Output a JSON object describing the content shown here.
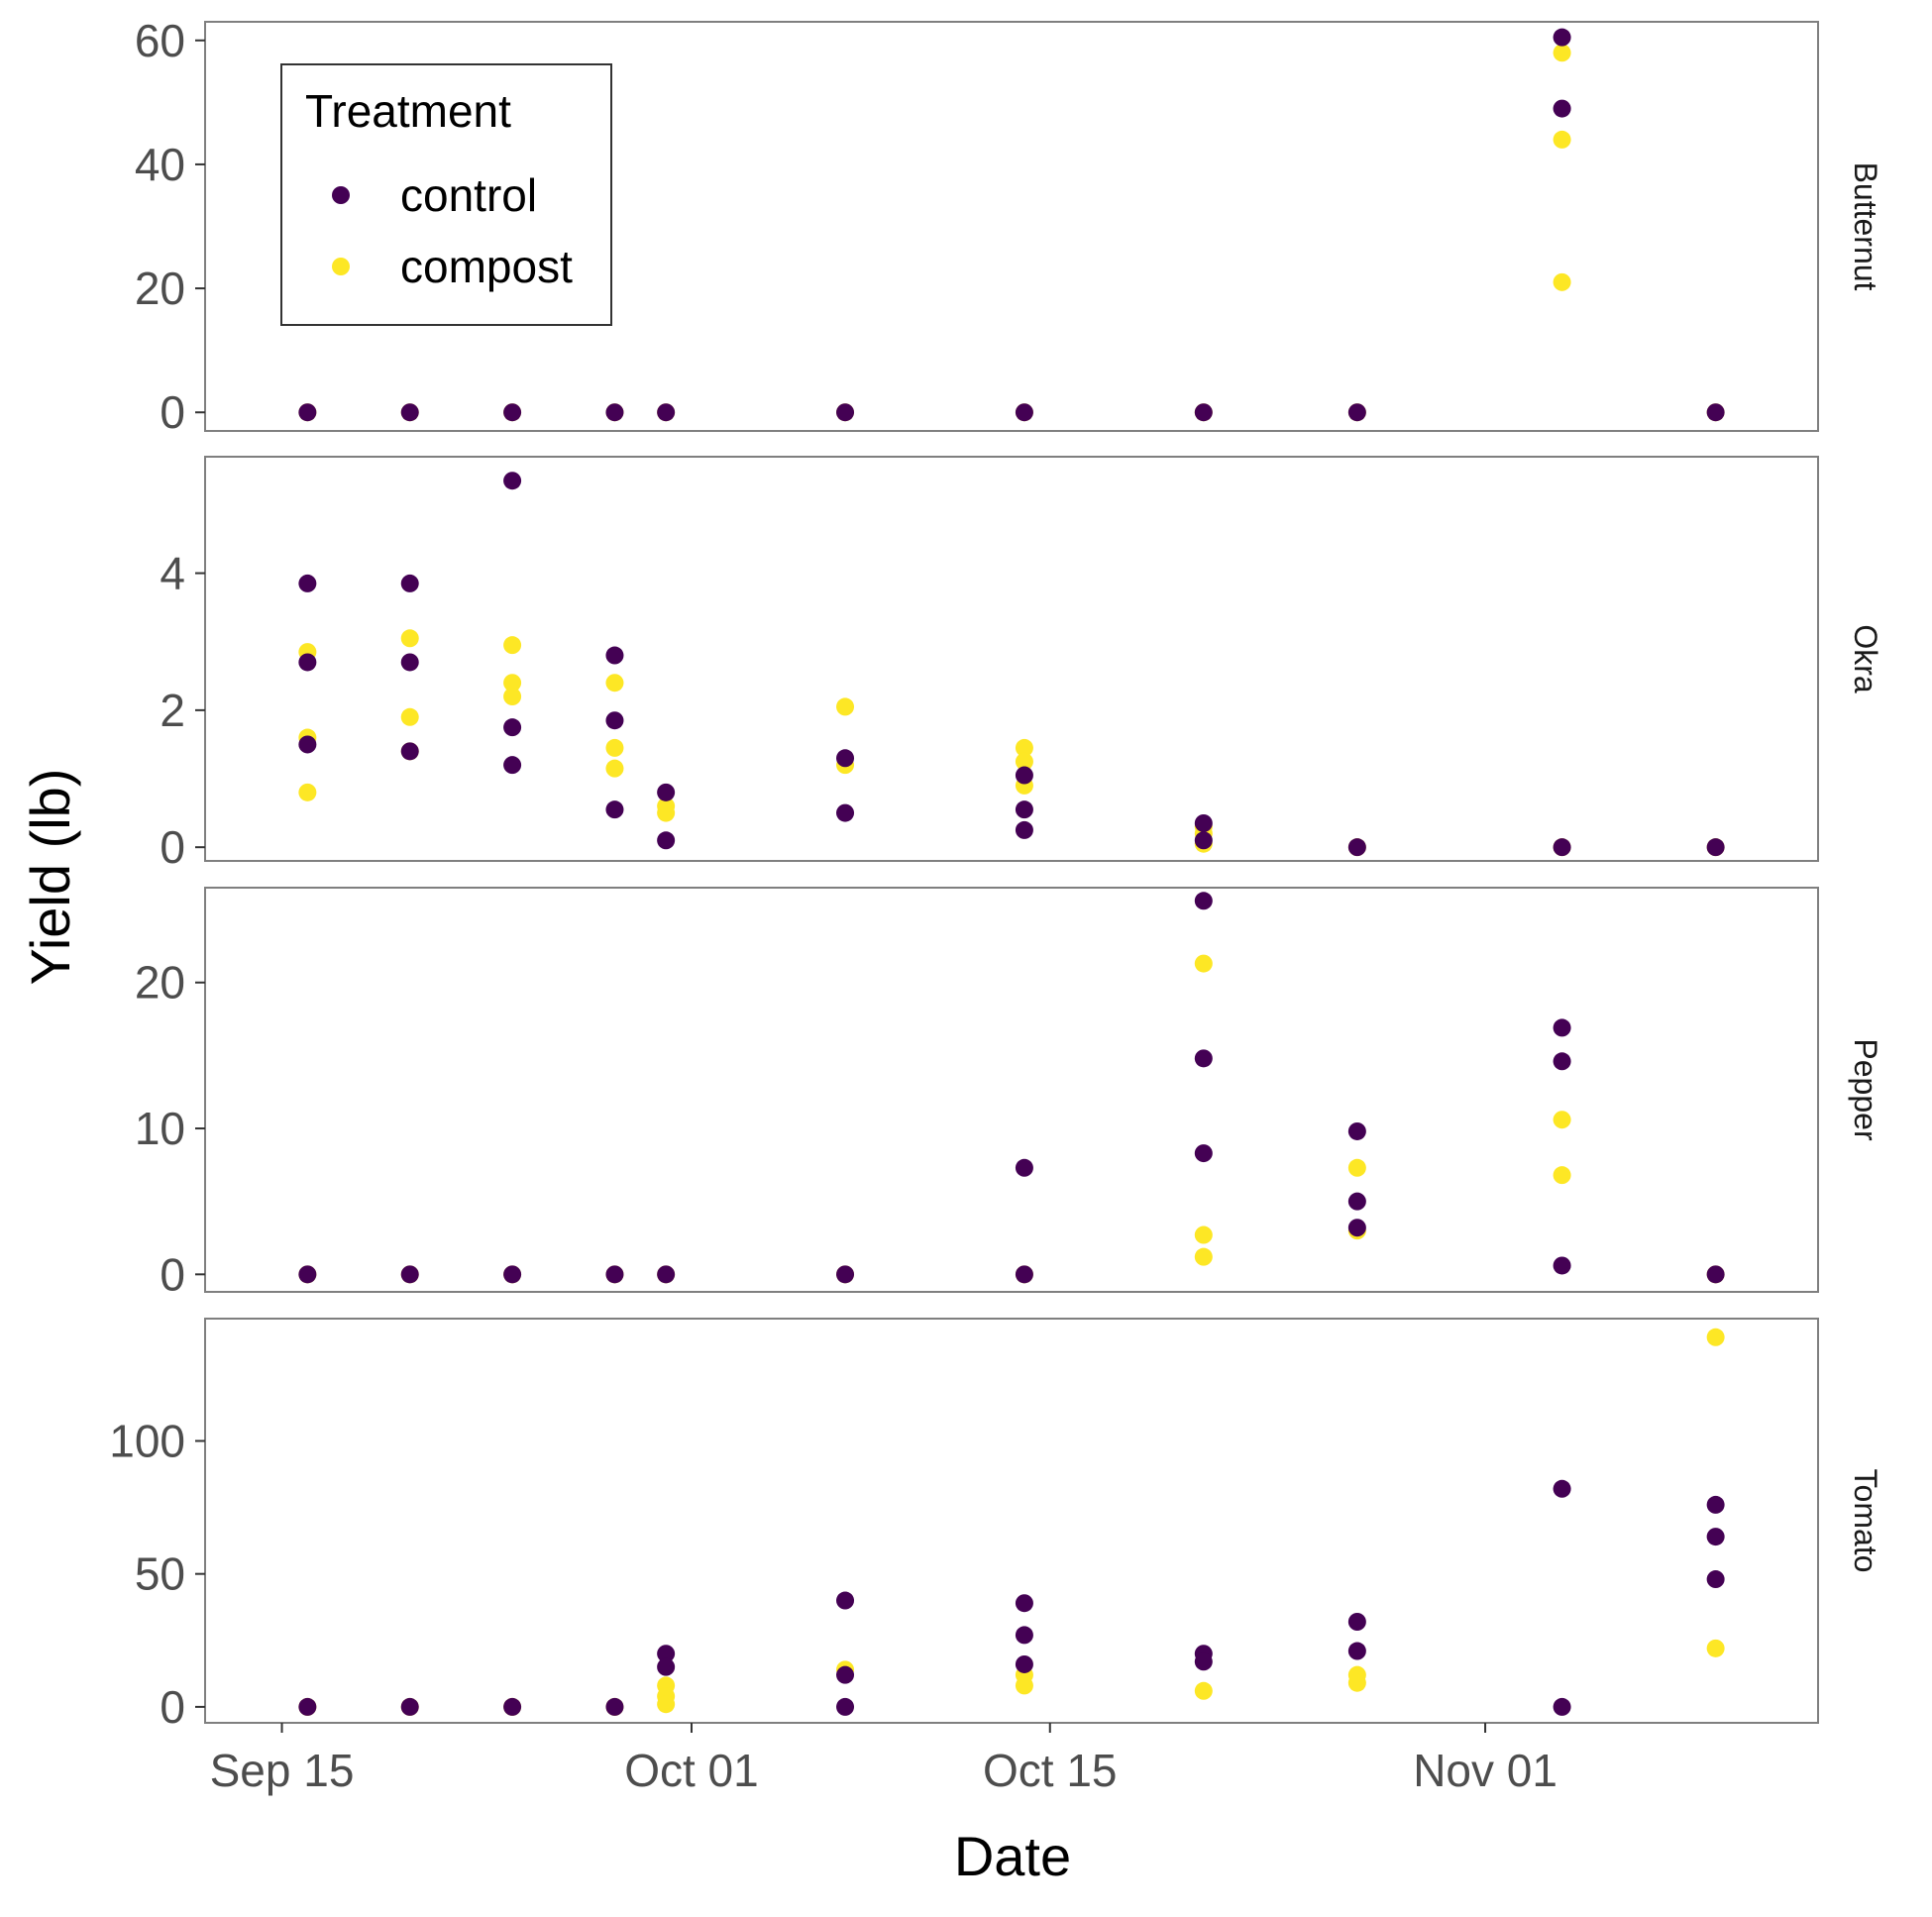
{
  "chart_data": {
    "type": "scatter",
    "facet_by": "Crop",
    "xlabel": "Date",
    "ylabel": "Yield (lb)",
    "x_ticks": [
      {
        "date": "2023-09-15",
        "label": "Sep 15"
      },
      {
        "date": "2023-10-01",
        "label": "Oct 01"
      },
      {
        "date": "2023-10-15",
        "label": "Oct 15"
      },
      {
        "date": "2023-11-01",
        "label": "Nov 01"
      }
    ],
    "xlim": [
      "2023-09-12",
      "2023-11-14"
    ],
    "legend": {
      "title": "Treatment",
      "placement": "top-left inside first panel",
      "entries": [
        {
          "name": "control",
          "color": "#440154"
        },
        {
          "name": "compost",
          "color": "#fde725"
        }
      ]
    },
    "panels": [
      {
        "name": "Butternut",
        "ylim": [
          -3,
          63
        ],
        "yticks": [
          0,
          20,
          40,
          60
        ],
        "series": [
          {
            "name": "compost",
            "points": [
              [
                "2023-09-16",
                0
              ],
              [
                "2023-09-20",
                0
              ],
              [
                "2023-09-24",
                0
              ],
              [
                "2023-09-28",
                0
              ],
              [
                "2023-09-30",
                0
              ],
              [
                "2023-10-07",
                0
              ],
              [
                "2023-10-14",
                0
              ],
              [
                "2023-10-21",
                0
              ],
              [
                "2023-10-27",
                0
              ],
              [
                "2023-11-04",
                58
              ],
              [
                "2023-11-04",
                44
              ],
              [
                "2023-11-04",
                21
              ],
              [
                "2023-11-10",
                0
              ]
            ]
          },
          {
            "name": "control",
            "points": [
              [
                "2023-09-16",
                0
              ],
              [
                "2023-09-20",
                0
              ],
              [
                "2023-09-24",
                0
              ],
              [
                "2023-09-28",
                0
              ],
              [
                "2023-09-30",
                0
              ],
              [
                "2023-10-07",
                0
              ],
              [
                "2023-10-14",
                0
              ],
              [
                "2023-10-21",
                0
              ],
              [
                "2023-10-27",
                0
              ],
              [
                "2023-11-04",
                60.5
              ],
              [
                "2023-11-04",
                49
              ],
              [
                "2023-11-10",
                0
              ]
            ]
          }
        ]
      },
      {
        "name": "Okra",
        "ylim": [
          -0.2,
          5.7
        ],
        "yticks": [
          0,
          2,
          4
        ],
        "series": [
          {
            "name": "compost",
            "points": [
              [
                "2023-09-16",
                2.85
              ],
              [
                "2023-09-16",
                1.6
              ],
              [
                "2023-09-16",
                0.8
              ],
              [
                "2023-09-20",
                3.05
              ],
              [
                "2023-09-20",
                1.9
              ],
              [
                "2023-09-20",
                1.4
              ],
              [
                "2023-09-24",
                2.95
              ],
              [
                "2023-09-24",
                2.4
              ],
              [
                "2023-09-24",
                2.2
              ],
              [
                "2023-09-28",
                2.4
              ],
              [
                "2023-09-28",
                1.45
              ],
              [
                "2023-09-28",
                1.15
              ],
              [
                "2023-09-30",
                0.6
              ],
              [
                "2023-09-30",
                0.5
              ],
              [
                "2023-10-07",
                2.05
              ],
              [
                "2023-10-07",
                1.2
              ],
              [
                "2023-10-14",
                1.45
              ],
              [
                "2023-10-14",
                1.25
              ],
              [
                "2023-10-14",
                0.9
              ],
              [
                "2023-10-21",
                0.3
              ],
              [
                "2023-10-21",
                0.2
              ],
              [
                "2023-10-21",
                0.05
              ],
              [
                "2023-10-27",
                0
              ],
              [
                "2023-11-04",
                0
              ],
              [
                "2023-11-10",
                0
              ]
            ]
          },
          {
            "name": "control",
            "points": [
              [
                "2023-09-16",
                3.85
              ],
              [
                "2023-09-16",
                2.7
              ],
              [
                "2023-09-16",
                1.5
              ],
              [
                "2023-09-20",
                3.85
              ],
              [
                "2023-09-20",
                2.7
              ],
              [
                "2023-09-20",
                1.4
              ],
              [
                "2023-09-24",
                5.35
              ],
              [
                "2023-09-24",
                1.75
              ],
              [
                "2023-09-24",
                1.2
              ],
              [
                "2023-09-28",
                2.8
              ],
              [
                "2023-09-28",
                1.85
              ],
              [
                "2023-09-28",
                0.55
              ],
              [
                "2023-09-30",
                0.8
              ],
              [
                "2023-09-30",
                0.1
              ],
              [
                "2023-10-07",
                1.3
              ],
              [
                "2023-10-07",
                0.5
              ],
              [
                "2023-10-14",
                1.05
              ],
              [
                "2023-10-14",
                0.55
              ],
              [
                "2023-10-14",
                0.25
              ],
              [
                "2023-10-21",
                0.35
              ],
              [
                "2023-10-21",
                0.1
              ],
              [
                "2023-10-27",
                0
              ],
              [
                "2023-11-04",
                0
              ],
              [
                "2023-11-10",
                0
              ]
            ]
          }
        ]
      },
      {
        "name": "Pepper",
        "ylim": [
          -1.2,
          26.5
        ],
        "yticks": [
          0,
          10,
          20
        ],
        "series": [
          {
            "name": "compost",
            "points": [
              [
                "2023-09-16",
                0
              ],
              [
                "2023-09-20",
                0
              ],
              [
                "2023-09-24",
                0
              ],
              [
                "2023-09-28",
                0
              ],
              [
                "2023-09-30",
                0
              ],
              [
                "2023-10-07",
                0
              ],
              [
                "2023-10-14",
                0
              ],
              [
                "2023-10-21",
                21.3
              ],
              [
                "2023-10-21",
                2.7
              ],
              [
                "2023-10-21",
                1.2
              ],
              [
                "2023-10-27",
                7.3
              ],
              [
                "2023-10-27",
                3.0
              ],
              [
                "2023-11-04",
                10.6
              ],
              [
                "2023-11-04",
                6.8
              ],
              [
                "2023-11-10",
                0
              ]
            ]
          },
          {
            "name": "control",
            "points": [
              [
                "2023-09-16",
                0
              ],
              [
                "2023-09-20",
                0
              ],
              [
                "2023-09-24",
                0
              ],
              [
                "2023-09-28",
                0
              ],
              [
                "2023-09-30",
                0
              ],
              [
                "2023-10-07",
                0
              ],
              [
                "2023-10-14",
                0
              ],
              [
                "2023-10-14",
                7.3
              ],
              [
                "2023-10-21",
                25.6
              ],
              [
                "2023-10-21",
                14.8
              ],
              [
                "2023-10-21",
                8.3
              ],
              [
                "2023-10-27",
                9.8
              ],
              [
                "2023-10-27",
                5.0
              ],
              [
                "2023-10-27",
                3.2
              ],
              [
                "2023-11-04",
                16.9
              ],
              [
                "2023-11-04",
                14.6
              ],
              [
                "2023-11-04",
                0.6
              ],
              [
                "2023-11-10",
                0
              ]
            ]
          }
        ]
      },
      {
        "name": "Tomato",
        "ylim": [
          -6,
          146
        ],
        "yticks": [
          0,
          50,
          100
        ],
        "series": [
          {
            "name": "compost",
            "points": [
              [
                "2023-09-16",
                0
              ],
              [
                "2023-09-20",
                0
              ],
              [
                "2023-09-24",
                0
              ],
              [
                "2023-09-28",
                0
              ],
              [
                "2023-09-30",
                8
              ],
              [
                "2023-09-30",
                4
              ],
              [
                "2023-09-30",
                1
              ],
              [
                "2023-10-07",
                14
              ],
              [
                "2023-10-14",
                12
              ],
              [
                "2023-10-14",
                8
              ],
              [
                "2023-10-21",
                6
              ],
              [
                "2023-10-27",
                12
              ],
              [
                "2023-10-27",
                9
              ],
              [
                "2023-11-10",
                139
              ],
              [
                "2023-11-10",
                22
              ]
            ]
          },
          {
            "name": "control",
            "points": [
              [
                "2023-09-16",
                0
              ],
              [
                "2023-09-20",
                0
              ],
              [
                "2023-09-24",
                0
              ],
              [
                "2023-09-28",
                0
              ],
              [
                "2023-09-30",
                20
              ],
              [
                "2023-09-30",
                15
              ],
              [
                "2023-10-07",
                40
              ],
              [
                "2023-10-07",
                12
              ],
              [
                "2023-10-07",
                0
              ],
              [
                "2023-10-14",
                39
              ],
              [
                "2023-10-14",
                27
              ],
              [
                "2023-10-14",
                16
              ],
              [
                "2023-10-21",
                20
              ],
              [
                "2023-10-21",
                17
              ],
              [
                "2023-10-27",
                32
              ],
              [
                "2023-10-27",
                21
              ],
              [
                "2023-11-04",
                82
              ],
              [
                "2023-11-04",
                0
              ],
              [
                "2023-11-10",
                76
              ],
              [
                "2023-11-10",
                64
              ],
              [
                "2023-11-10",
                48
              ]
            ]
          }
        ]
      }
    ]
  }
}
